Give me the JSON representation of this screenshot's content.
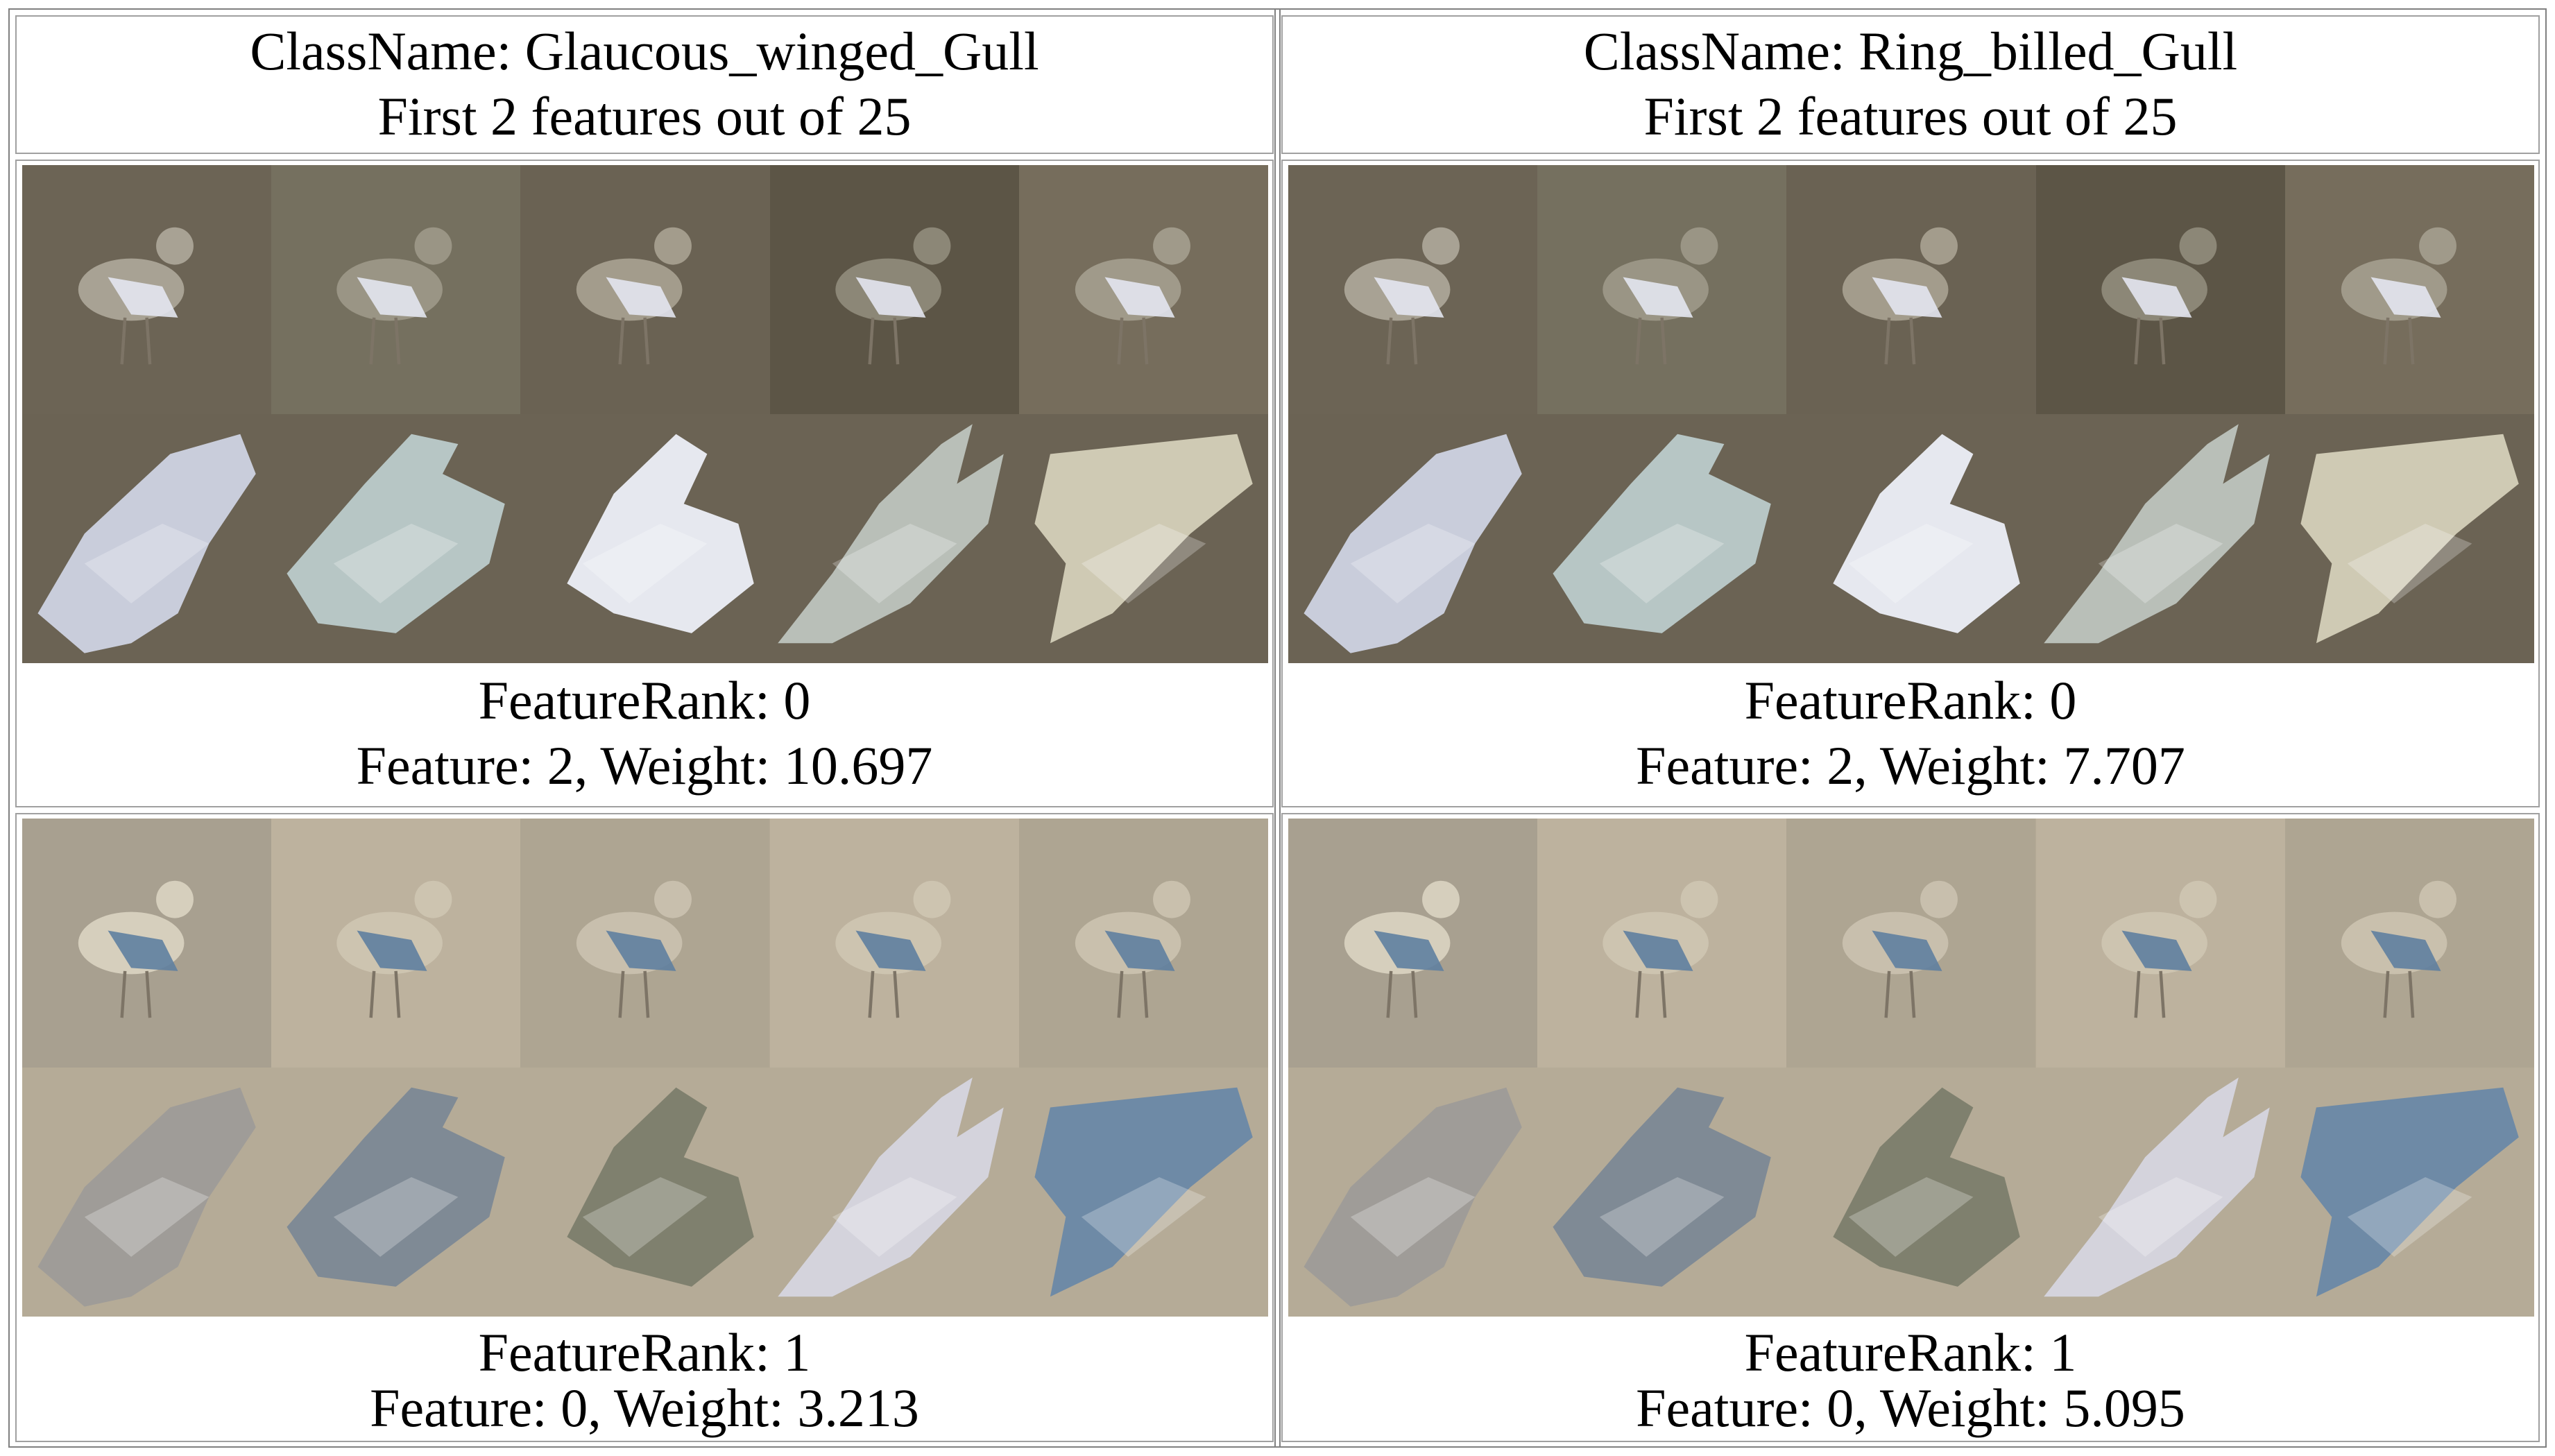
{
  "panels": [
    {
      "class_name": "ClassName: Glaucous_winged_Gull",
      "features_line": "First 2 features out of 25",
      "rows": [
        {
          "rank_label": "FeatureRank: 0",
          "feature_label": "Feature: 2, Weight: 10.697",
          "background": "#6b6354",
          "full_images": [
            {
              "name": "gull-on-boardwalk",
              "bg": "#6c6455",
              "bird": "#a8a294"
            },
            {
              "name": "gull-standing-profile",
              "bg": "#75705f",
              "bird": "#9a9585"
            },
            {
              "name": "gull-on-gravel",
              "bg": "#6a6253",
              "bird": "#a39c8c"
            },
            {
              "name": "gull-on-rocks",
              "bg": "#5c5546",
              "bird": "#8c8777"
            },
            {
              "name": "gull-on-wet-sand",
              "bg": "#766d5c",
              "bird": "#a09a8a"
            }
          ],
          "crops": [
            {
              "name": "wing-patch-crop",
              "fill": "#c9cddb"
            },
            {
              "name": "wing-tail-crop",
              "fill": "#b7c6c5"
            },
            {
              "name": "white-feather-crop",
              "fill": "#e6e8ef"
            },
            {
              "name": "grey-wing-crop",
              "fill": "#b9bfb8"
            },
            {
              "name": "sand-wing-crop",
              "fill": "#cfcab4"
            }
          ]
        },
        {
          "rank_label": "FeatureRank: 1",
          "feature_label": "Feature: 0, Weight: 3.213",
          "background": "#b5ab97",
          "full_images": [
            {
              "name": "gull-on-pavement",
              "bg": "#a8a090",
              "bird": "#d6cfbd"
            },
            {
              "name": "gull-on-post",
              "bg": "#bdb29e",
              "bird": "#cdc4b0"
            },
            {
              "name": "gull-on-beach",
              "bg": "#aea592",
              "bird": "#c8bfad"
            },
            {
              "name": "gull-on-post-2",
              "bg": "#bdb29e",
              "bird": "#cdc4b0"
            },
            {
              "name": "gull-on-beach-2",
              "bg": "#aea592",
              "bird": "#c9c0ad"
            }
          ],
          "crops": [
            {
              "name": "grey-body-crop",
              "fill": "#9f9c98"
            },
            {
              "name": "blue-grey-wing-crop",
              "fill": "#7f8a95"
            },
            {
              "name": "olive-wing-crop",
              "fill": "#7f806e"
            },
            {
              "name": "pale-wing-crop",
              "fill": "#d4d3dc"
            },
            {
              "name": "blue-tail-crop",
              "fill": "#6e8aa6"
            }
          ]
        }
      ]
    },
    {
      "class_name": "ClassName: Ring_billed_Gull",
      "features_line": "First 2 features out of 25",
      "rows": [
        {
          "rank_label": "FeatureRank: 0",
          "feature_label": "Feature: 2, Weight: 7.707",
          "background": "#6b6354",
          "full_images": [
            {
              "name": "gull-on-boardwalk",
              "bg": "#6c6455",
              "bird": "#a8a294"
            },
            {
              "name": "gull-standing-profile",
              "bg": "#75705f",
              "bird": "#9a9585"
            },
            {
              "name": "gull-on-gravel",
              "bg": "#6a6253",
              "bird": "#a39c8c"
            },
            {
              "name": "gull-on-rocks",
              "bg": "#5c5546",
              "bird": "#8c8777"
            },
            {
              "name": "gull-on-wet-sand",
              "bg": "#766d5c",
              "bird": "#a09a8a"
            }
          ],
          "crops": [
            {
              "name": "wing-patch-crop",
              "fill": "#c9cddb"
            },
            {
              "name": "wing-tail-crop",
              "fill": "#b7c6c5"
            },
            {
              "name": "white-feather-crop",
              "fill": "#e6e8ef"
            },
            {
              "name": "grey-wing-crop",
              "fill": "#b9bfb8"
            },
            {
              "name": "sand-wing-crop",
              "fill": "#cfcab4"
            }
          ]
        },
        {
          "rank_label": "FeatureRank: 1",
          "feature_label": "Feature: 0, Weight: 5.095",
          "background": "#b5ab97",
          "full_images": [
            {
              "name": "gull-on-pavement",
              "bg": "#a8a090",
              "bird": "#d6cfbd"
            },
            {
              "name": "gull-on-post",
              "bg": "#bdb29e",
              "bird": "#cdc4b0"
            },
            {
              "name": "gull-on-beach",
              "bg": "#aea592",
              "bird": "#c8bfad"
            },
            {
              "name": "gull-on-post-2",
              "bg": "#bdb29e",
              "bird": "#cdc4b0"
            },
            {
              "name": "gull-on-beach-2",
              "bg": "#aea592",
              "bird": "#c9c0ad"
            }
          ],
          "crops": [
            {
              "name": "grey-body-crop",
              "fill": "#9f9c98"
            },
            {
              "name": "blue-grey-wing-crop",
              "fill": "#7f8a95"
            },
            {
              "name": "olive-wing-crop",
              "fill": "#7f806e"
            },
            {
              "name": "pale-wing-crop",
              "fill": "#d4d3dc"
            },
            {
              "name": "blue-tail-crop",
              "fill": "#6e8aa6"
            }
          ]
        }
      ]
    }
  ]
}
